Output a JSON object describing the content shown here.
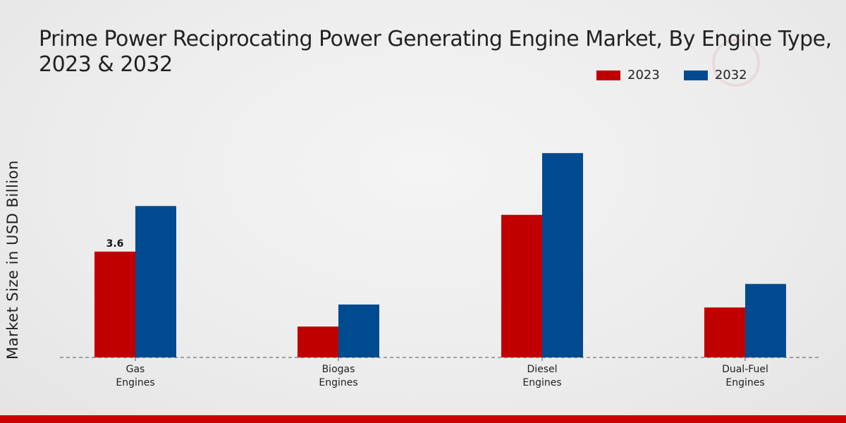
{
  "chart_data": {
    "type": "bar",
    "title_lines": [
      "Prime Power Reciprocating Power Generating Engine Market, By Engine Type,",
      "2023 & 2032"
    ],
    "ylabel": "Market Size in USD Billion",
    "xlabel": "",
    "categories": [
      [
        "Gas",
        "Engines"
      ],
      [
        "Biogas",
        "Engines"
      ],
      [
        "Diesel",
        "Engines"
      ],
      [
        "Dual-Fuel",
        "Engines"
      ]
    ],
    "series": [
      {
        "name": "2023",
        "color": "#c00000",
        "values": [
          3.6,
          1.05,
          4.85,
          1.7
        ]
      },
      {
        "name": "2032",
        "color": "#004a8f",
        "values": [
          5.15,
          1.8,
          6.95,
          2.5
        ]
      }
    ],
    "data_labels": [
      {
        "series": 0,
        "index": 0,
        "text": "3.6"
      }
    ],
    "ylim": [
      0,
      10
    ],
    "grid": false,
    "legend_position": "top-right"
  }
}
